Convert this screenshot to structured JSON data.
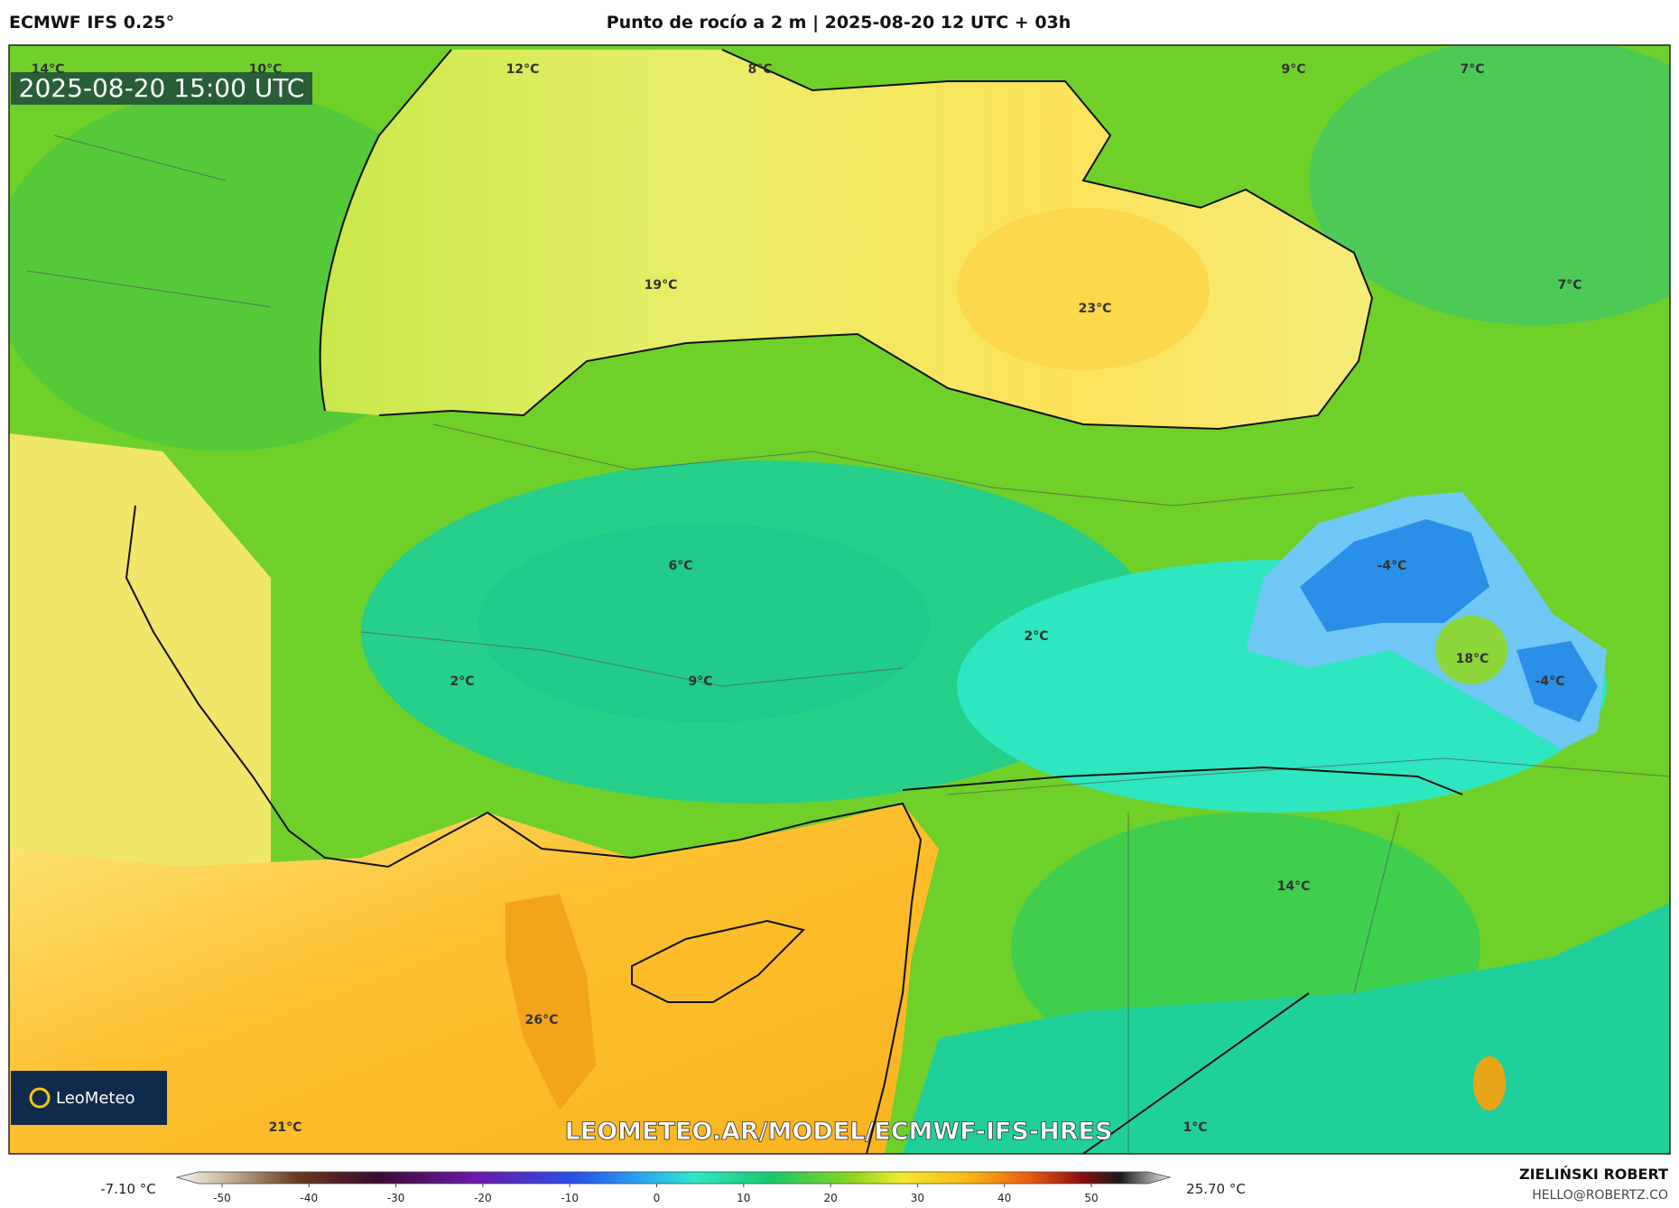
{
  "header": {
    "model": "ECMWF IFS 0.25°",
    "title": "Punto de rocío a 2 m | 2025-08-20 12 UTC + 03h"
  },
  "map": {
    "valid_time": "2025-08-20 15:00 UTC",
    "labels": [
      "14°C",
      "10°C",
      "12°C",
      "8°C",
      "9°C",
      "7°C",
      "19°C",
      "23°C",
      "7°C",
      "6°C",
      "-4°C",
      "2°C",
      "18°C",
      "-4°C",
      "2°C",
      "9°C",
      "14°C",
      "26°C",
      "21°C",
      "1°C"
    ],
    "logo": "LeoMeteo",
    "watermark": "LEOMETEO.AR/MODEL/ECMWF-IFS-HRES"
  },
  "colorbar": {
    "min_label": "-7.10 °C",
    "max_label": "25.70 °C",
    "ticks": [
      "-50",
      "-40",
      "-30",
      "-20",
      "-10",
      "0",
      "10",
      "20",
      "30",
      "40",
      "50"
    ]
  },
  "credit": {
    "author": "ZIELIŃSKI ROBERT",
    "email": "HELLO@ROBERTZ.CO"
  }
}
